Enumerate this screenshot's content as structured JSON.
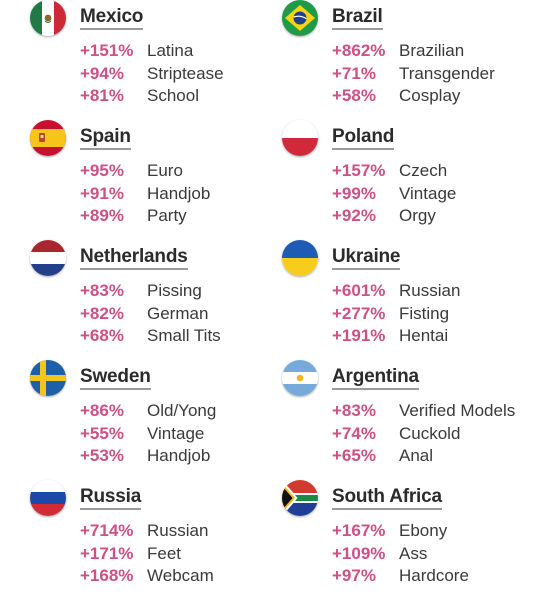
{
  "colors": {
    "percent": "#cf4f86",
    "text": "#3a3a3a",
    "heading": "#2b2b2b"
  },
  "countries": [
    {
      "name": "Mexico",
      "flag_icon": "mexico-flag-icon",
      "items": [
        {
          "pct": "+151%",
          "term": "Latina"
        },
        {
          "pct": "+94%",
          "term": "Striptease"
        },
        {
          "pct": "+81%",
          "term": "School"
        }
      ]
    },
    {
      "name": "Brazil",
      "flag_icon": "brazil-flag-icon",
      "items": [
        {
          "pct": "+862%",
          "term": "Brazilian"
        },
        {
          "pct": "+71%",
          "term": "Transgender"
        },
        {
          "pct": "+58%",
          "term": "Cosplay"
        }
      ]
    },
    {
      "name": "Spain",
      "flag_icon": "spain-flag-icon",
      "items": [
        {
          "pct": "+95%",
          "term": "Euro"
        },
        {
          "pct": "+91%",
          "term": "Handjob"
        },
        {
          "pct": "+89%",
          "term": "Party"
        }
      ]
    },
    {
      "name": "Poland",
      "flag_icon": "poland-flag-icon",
      "items": [
        {
          "pct": "+157%",
          "term": "Czech"
        },
        {
          "pct": "+99%",
          "term": "Vintage"
        },
        {
          "pct": "+92%",
          "term": "Orgy"
        }
      ]
    },
    {
      "name": "Netherlands",
      "flag_icon": "netherlands-flag-icon",
      "items": [
        {
          "pct": "+83%",
          "term": "Pissing"
        },
        {
          "pct": "+82%",
          "term": "German"
        },
        {
          "pct": "+68%",
          "term": "Small Tits"
        }
      ]
    },
    {
      "name": "Ukraine",
      "flag_icon": "ukraine-flag-icon",
      "items": [
        {
          "pct": "+601%",
          "term": "Russian"
        },
        {
          "pct": "+277%",
          "term": "Fisting"
        },
        {
          "pct": "+191%",
          "term": "Hentai"
        }
      ]
    },
    {
      "name": "Sweden",
      "flag_icon": "sweden-flag-icon",
      "items": [
        {
          "pct": "+86%",
          "term": "Old/Yong"
        },
        {
          "pct": "+55%",
          "term": "Vintage"
        },
        {
          "pct": "+53%",
          "term": "Handjob"
        }
      ]
    },
    {
      "name": "Argentina",
      "flag_icon": "argentina-flag-icon",
      "items": [
        {
          "pct": "+83%",
          "term": "Verified Models"
        },
        {
          "pct": "+74%",
          "term": "Cuckold"
        },
        {
          "pct": "+65%",
          "term": "Anal"
        }
      ]
    },
    {
      "name": "Russia",
      "flag_icon": "russia-flag-icon",
      "items": [
        {
          "pct": "+714%",
          "term": "Russian"
        },
        {
          "pct": "+171%",
          "term": "Feet"
        },
        {
          "pct": "+168%",
          "term": "Webcam"
        }
      ]
    },
    {
      "name": "South Africa",
      "flag_icon": "south-africa-flag-icon",
      "items": [
        {
          "pct": "+167%",
          "term": "Ebony"
        },
        {
          "pct": "+109%",
          "term": "Ass"
        },
        {
          "pct": "+97%",
          "term": "Hardcore"
        }
      ]
    }
  ]
}
